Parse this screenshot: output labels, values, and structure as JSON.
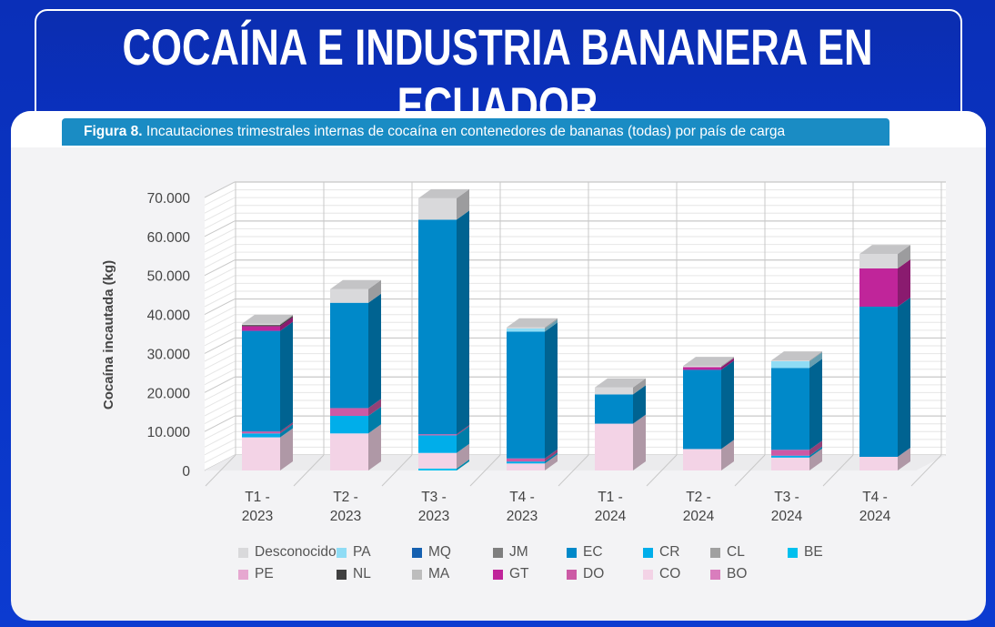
{
  "header": {
    "title": "COCAÍNA E INDUSTRIA BANANERA EN ECUADOR"
  },
  "figure": {
    "label": "Figura 8.",
    "caption": " Incautaciones trimestrales internas de cocaína en contenedores de bananas (todas) por país de carga"
  },
  "chart_data": {
    "type": "bar",
    "stacked": true,
    "three_d": true,
    "ylabel": "Cocaína incautada (kg)",
    "ylim": [
      0,
      70000
    ],
    "yticks": [
      "0",
      "10.000",
      "20.000",
      "30.000",
      "40.000",
      "50.000",
      "60.000",
      "70.000"
    ],
    "grid": true,
    "legend_position": "bottom",
    "categories": [
      "T1 -\n2023",
      "T2 -\n2023",
      "T3 -\n2023",
      "T4 -\n2023",
      "T1 -\n2024",
      "T2 -\n2024",
      "T3 -\n2024",
      "T4 -\n2024"
    ],
    "category_lines": [
      [
        "T1 -",
        "2023"
      ],
      [
        "T2 -",
        "2023"
      ],
      [
        "T3 -",
        "2023"
      ],
      [
        "T4 -",
        "2023"
      ],
      [
        "T1 -",
        "2024"
      ],
      [
        "T2 -",
        "2024"
      ],
      [
        "T3 -",
        "2024"
      ],
      [
        "T4 -",
        "2024"
      ]
    ],
    "series": [
      {
        "name": "Desconocido",
        "color": "#d9d9db",
        "values": [
          300,
          3500,
          5500,
          300,
          1800,
          300,
          200,
          3700
        ]
      },
      {
        "name": "PA",
        "color": "#8fdcf5",
        "values": [
          0,
          0,
          0,
          800,
          0,
          0,
          1700,
          0
        ]
      },
      {
        "name": "MQ",
        "color": "#1560b0",
        "values": [
          0,
          0,
          0,
          0,
          0,
          0,
          0,
          0
        ]
      },
      {
        "name": "JM",
        "color": "#7f7f7f",
        "values": [
          0,
          0,
          0,
          0,
          0,
          0,
          0,
          0
        ]
      },
      {
        "name": "EC",
        "color": "#0089c9",
        "values": [
          25800,
          27000,
          55000,
          32500,
          7500,
          20300,
          21000,
          38500
        ]
      },
      {
        "name": "CR",
        "color": "#00aeea",
        "values": [
          1000,
          4500,
          4500,
          500,
          0,
          0,
          500,
          0
        ]
      },
      {
        "name": "CL",
        "color": "#a0a0a0",
        "values": [
          0,
          0,
          0,
          0,
          0,
          0,
          0,
          0
        ]
      },
      {
        "name": "BE",
        "color": "#00c0ee",
        "values": [
          0,
          0,
          500,
          0,
          0,
          0,
          0,
          0
        ]
      },
      {
        "name": "PE",
        "color": "#e6a8d0",
        "values": [
          0,
          0,
          0,
          0,
          0,
          0,
          0,
          0
        ]
      },
      {
        "name": "NL",
        "color": "#404040",
        "values": [
          300,
          0,
          0,
          0,
          0,
          0,
          0,
          0
        ]
      },
      {
        "name": "MA",
        "color": "#bdbdbd",
        "values": [
          0,
          0,
          0,
          0,
          0,
          0,
          0,
          0
        ]
      },
      {
        "name": "GT",
        "color": "#c0259a",
        "values": [
          1200,
          0,
          0,
          0,
          0,
          700,
          0,
          9800
        ]
      },
      {
        "name": "DO",
        "color": "#cc5aa5",
        "values": [
          500,
          2000,
          300,
          800,
          0,
          0,
          1500,
          0
        ]
      },
      {
        "name": "CO",
        "color": "#f3d3e6",
        "values": [
          8500,
          9500,
          4000,
          1800,
          12000,
          5500,
          3300,
          3500
        ]
      },
      {
        "name": "BO",
        "color": "#d97dbd",
        "values": [
          0,
          0,
          0,
          0,
          0,
          0,
          0,
          0
        ]
      }
    ],
    "stack_order_bottom_to_top": [
      "BE",
      "CO",
      "PE",
      "BO",
      "CR",
      "DO",
      "EC",
      "MQ",
      "JM",
      "CL",
      "MA",
      "GT",
      "NL",
      "PA",
      "Desconocido"
    ]
  }
}
